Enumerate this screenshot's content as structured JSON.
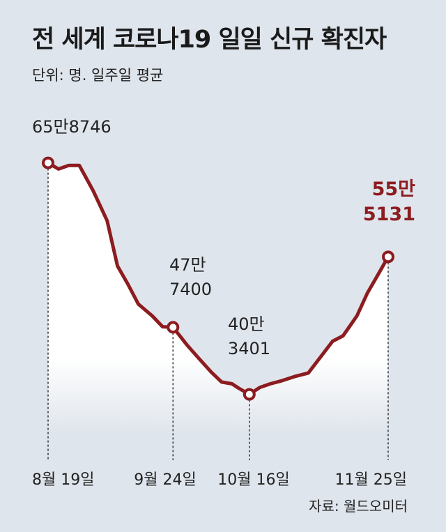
{
  "title": "전 세계 코로나19 일일 신규 확진자",
  "subtitle": "단위: 명. 일주일 평균",
  "source": "자료: 월드오미터",
  "colors": {
    "background": "#dfe5ec",
    "line": "#8c1c20",
    "highlight": "#8c1c20",
    "text": "#222222"
  },
  "chart_data": {
    "type": "line",
    "title": "전 세계 코로나19 일일 신규 확진자",
    "subtitle": "단위: 명. 일주일 평균",
    "x": [
      "08-19",
      "08-22",
      "08-25",
      "08-28",
      "09-01",
      "09-05",
      "09-08",
      "09-11",
      "09-14",
      "09-18",
      "09-21",
      "09-24",
      "09-28",
      "10-01",
      "10-05",
      "10-08",
      "10-11",
      "10-13",
      "10-16",
      "10-19",
      "10-22",
      "10-25",
      "10-29",
      "11-02",
      "11-05",
      "11-09",
      "11-12",
      "11-16",
      "11-19",
      "11-22",
      "11-25"
    ],
    "values": [
      658746,
      652000,
      656000,
      656000,
      628000,
      595000,
      545000,
      525000,
      503000,
      490000,
      478000,
      477400,
      458000,
      445000,
      428000,
      417000,
      415000,
      410000,
      403401,
      411000,
      415000,
      418000,
      423000,
      427000,
      442000,
      462000,
      468000,
      490000,
      515000,
      535000,
      555131
    ],
    "points": [
      {
        "x": "08-19",
        "value": 658746,
        "label_top": "65만8746",
        "tick": "8월 19일"
      },
      {
        "x": "09-24",
        "value": 477400,
        "label_top": "47만",
        "label_bottom": "7400",
        "tick": "9월 24일"
      },
      {
        "x": "10-16",
        "value": 403401,
        "label_top": "40만",
        "label_bottom": "3401",
        "tick": "10월 16일"
      },
      {
        "x": "11-25",
        "value": 555131,
        "label_top": "55만",
        "label_bottom": "5131",
        "tick": "11월 25일",
        "highlight": true
      }
    ],
    "ylim": [
      360000,
      700000
    ],
    "grid": false,
    "legend": "none"
  }
}
